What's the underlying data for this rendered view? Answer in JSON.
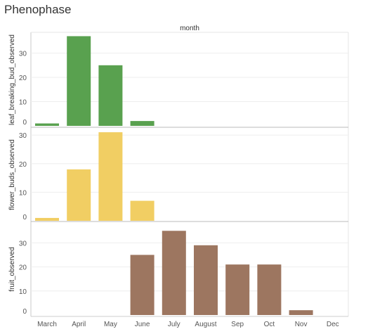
{
  "page": {
    "title": "Phenophase"
  },
  "chart_data": {
    "type": "bar",
    "column_header": "month",
    "categories": [
      "March",
      "April",
      "May",
      "June",
      "July",
      "August",
      "Sep",
      "Oct",
      "Nov",
      "Dec"
    ],
    "panels": [
      {
        "ylabel": "leaf_breaking_bud_observed",
        "color": "#59a14f",
        "ylim": [
          0,
          38
        ],
        "yticks": [
          0,
          10,
          20,
          30
        ],
        "values": [
          1,
          37,
          25,
          2,
          0,
          0,
          0,
          0,
          0,
          0
        ]
      },
      {
        "ylabel": "flower_buds_observed",
        "color": "#f1ce63",
        "ylim": [
          0,
          32
        ],
        "yticks": [
          0,
          10,
          20,
          30
        ],
        "values": [
          1,
          18,
          31,
          7,
          0,
          0,
          0,
          0,
          0,
          0
        ]
      },
      {
        "ylabel": "fruit_observed",
        "color": "#9d7660",
        "ylim": [
          0,
          38
        ],
        "yticks": [
          0,
          10,
          20,
          30
        ],
        "values": [
          0,
          0,
          0,
          25,
          35,
          29,
          21,
          21,
          2,
          0
        ]
      }
    ],
    "grid": true,
    "legend": "none"
  }
}
